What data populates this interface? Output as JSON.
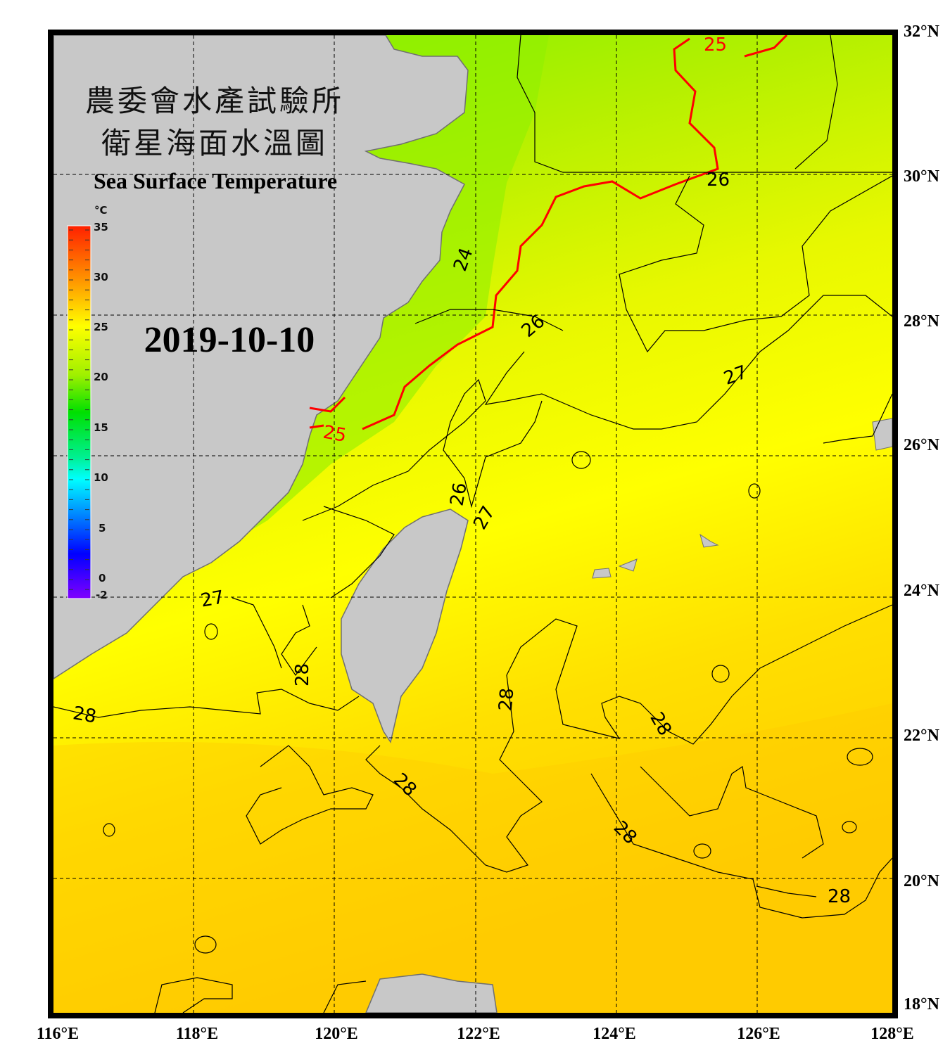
{
  "title": {
    "line1": "農委會水產試驗所",
    "line2": "衛星海面水溫圖",
    "english": "Sea Surface Temperature",
    "date": "2019-10-10"
  },
  "colorbar": {
    "unit": "°C",
    "ticks": [
      "35",
      "30",
      "25",
      "20",
      "15",
      "10",
      "5",
      "0",
      "-2"
    ],
    "colors": [
      "#ff2000",
      "#ff9000",
      "#ffff00",
      "#a0f000",
      "#00e000",
      "#00f090",
      "#00ffff",
      "#0080ff",
      "#0000ff",
      "#8000ff"
    ]
  },
  "axes": {
    "lon_labels": [
      "116°E",
      "118°E",
      "120°E",
      "122°E",
      "124°E",
      "126°E",
      "128°E"
    ],
    "lat_labels": [
      "32°N",
      "30°N",
      "28°N",
      "26°N",
      "24°N",
      "22°N",
      "20°N",
      "18°N"
    ]
  },
  "contour_labels": [
    "25",
    "25",
    "26",
    "26",
    "24",
    "27",
    "26",
    "27",
    "27",
    "28",
    "28",
    "28",
    "28",
    "28",
    "28",
    "28"
  ],
  "colors": {
    "land": "#c8c8c8",
    "frame": "#000000",
    "isotherm_25": "#ff0000",
    "warm_sea": "#ffd000",
    "cool_sea": "#80f000"
  }
}
